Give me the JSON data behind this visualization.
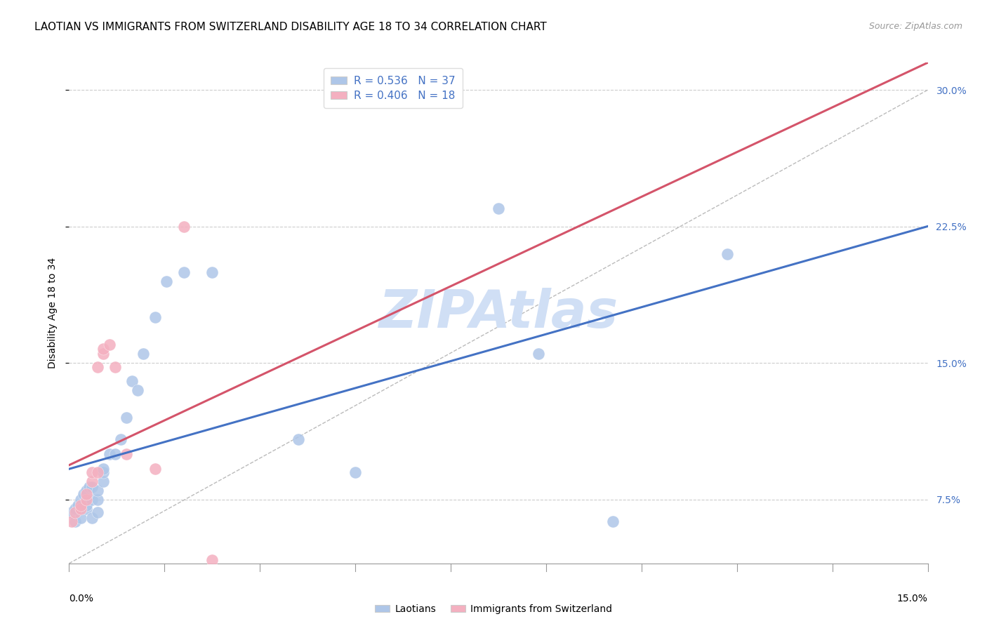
{
  "title": "LAOTIAN VS IMMIGRANTS FROM SWITZERLAND DISABILITY AGE 18 TO 34 CORRELATION CHART",
  "source": "Source: ZipAtlas.com",
  "ylabel_label": "Disability Age 18 to 34",
  "legend_label1": "Laotians",
  "legend_label2": "Immigrants from Switzerland",
  "R1": 0.536,
  "N1": 37,
  "R2": 0.406,
  "N2": 18,
  "color1": "#aec6e8",
  "color2": "#f4b0c0",
  "trendline1_color": "#4472c4",
  "trendline2_color": "#d4546a",
  "ref_line_color": "#bbbbbb",
  "watermark_color": "#d0dff5",
  "xmin": 0.0,
  "xmax": 0.15,
  "ymin": 0.04,
  "ymax": 0.315,
  "yticks": [
    0.075,
    0.15,
    0.225,
    0.3
  ],
  "blue_x": [
    0.0005,
    0.001,
    0.001,
    0.0015,
    0.002,
    0.002,
    0.0025,
    0.003,
    0.003,
    0.003,
    0.0035,
    0.004,
    0.004,
    0.004,
    0.005,
    0.005,
    0.005,
    0.006,
    0.006,
    0.006,
    0.007,
    0.008,
    0.009,
    0.01,
    0.011,
    0.012,
    0.013,
    0.015,
    0.017,
    0.02,
    0.025,
    0.04,
    0.05,
    0.075,
    0.082,
    0.095,
    0.115
  ],
  "blue_y": [
    0.068,
    0.063,
    0.07,
    0.072,
    0.065,
    0.075,
    0.078,
    0.07,
    0.072,
    0.08,
    0.082,
    0.065,
    0.075,
    0.082,
    0.068,
    0.075,
    0.08,
    0.085,
    0.09,
    0.092,
    0.1,
    0.1,
    0.108,
    0.12,
    0.14,
    0.135,
    0.155,
    0.175,
    0.195,
    0.2,
    0.2,
    0.108,
    0.09,
    0.235,
    0.155,
    0.063,
    0.21
  ],
  "pink_x": [
    0.0005,
    0.001,
    0.002,
    0.002,
    0.003,
    0.003,
    0.004,
    0.004,
    0.005,
    0.005,
    0.006,
    0.006,
    0.007,
    0.008,
    0.01,
    0.015,
    0.02,
    0.025
  ],
  "pink_y": [
    0.063,
    0.068,
    0.07,
    0.072,
    0.075,
    0.078,
    0.085,
    0.09,
    0.09,
    0.148,
    0.155,
    0.158,
    0.16,
    0.148,
    0.1,
    0.092,
    0.225,
    0.042
  ],
  "title_fontsize": 11,
  "axis_label_fontsize": 10,
  "tick_fontsize": 10,
  "legend_fontsize": 11
}
